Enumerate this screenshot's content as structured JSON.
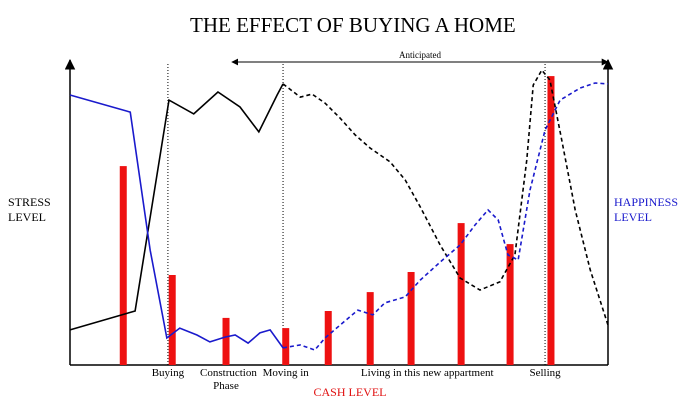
{
  "chart_data": {
    "type": "line",
    "title": "THE EFFECT OF BUYING A HOME",
    "y_label": "STRESS LEVEL",
    "y2_label": "HAPPINESS LEVEL",
    "y2_label_color": "#1a1acc",
    "x_label": "CASH LEVEL",
    "x_label_color": "#e01010",
    "annotation": {
      "text": "Anticipated",
      "span": [
        30.1,
        100
      ]
    },
    "xlim": [
      0,
      100
    ],
    "ylim": [
      0,
      100
    ],
    "phase_labels": [
      {
        "label": "Buying",
        "x": 18.2
      },
      {
        "label": "Construction Phase",
        "x": 29.0
      },
      {
        "label": "Moving in",
        "x": 40.1
      },
      {
        "label": "Living in this new appartment",
        "x": 66.4
      },
      {
        "label": "Selling",
        "x": 88.3
      }
    ],
    "markers": [
      18.2,
      39.6,
      88.3
    ],
    "bars": {
      "color": "#ee1111",
      "x": [
        9.9,
        19.0,
        29.0,
        40.1,
        48.0,
        55.8,
        63.4,
        72.7,
        81.8,
        89.4
      ],
      "values": [
        66.3,
        30,
        15.7,
        12.3,
        18,
        24.3,
        31,
        47.3,
        40.3,
        96.3
      ]
    },
    "series": [
      {
        "color": "#000000",
        "dashed": false,
        "x": [
          0,
          12.1,
          18.4,
          23.0,
          27.5,
          31.6,
          35.1,
          38.5,
          39.6
        ],
        "values": [
          11.7,
          18,
          88.3,
          83.7,
          91,
          86,
          77.7,
          90,
          93.7
        ]
      },
      {
        "color": "#000000",
        "dashed": true,
        "x": [
          39.6,
          42.8,
          45,
          47.4,
          50.2,
          53,
          55.8,
          59.5,
          62.3,
          65.1,
          68.8,
          72.5,
          76.2,
          79.9,
          82.7,
          84.9,
          86.1,
          87.7,
          89.2,
          91.4,
          93.9,
          96.7,
          100
        ],
        "values": [
          93.7,
          89.3,
          90.3,
          87.3,
          82.3,
          76.7,
          72.3,
          67.7,
          61.7,
          52.7,
          40,
          29,
          25,
          27.7,
          36.7,
          68.3,
          93.3,
          98.3,
          95,
          75,
          51.7,
          31.7,
          13.3
        ]
      },
      {
        "color": "#1a1acc",
        "dashed": false,
        "x": [
          0,
          11.2,
          14.9,
          18.0,
          20.4,
          23.6,
          26,
          28.8,
          30.7,
          33.1,
          35.3,
          37.2,
          39.6
        ],
        "values": [
          90,
          84.3,
          38.3,
          9,
          12.3,
          10,
          7.7,
          9.3,
          10,
          7.3,
          10.7,
          11.7,
          5.7
        ]
      },
      {
        "color": "#1a1acc",
        "dashed": true,
        "x": [
          39.6,
          42.8,
          45.5,
          47.4,
          50.2,
          53.5,
          56.3,
          58.5,
          62.3,
          65.1,
          68.8,
          72.5,
          75.3,
          77.7,
          79.6,
          81.4,
          83.3,
          85.5,
          88.3,
          91.1,
          94.8,
          97.6,
          100
        ],
        "values": [
          5.7,
          6.7,
          5,
          9,
          13.3,
          18.3,
          16.7,
          20.7,
          22.7,
          28.3,
          34.3,
          40,
          46.7,
          51.7,
          48.3,
          36.7,
          35,
          58.3,
          78.3,
          88.3,
          92.3,
          94,
          93.7
        ]
      }
    ]
  }
}
